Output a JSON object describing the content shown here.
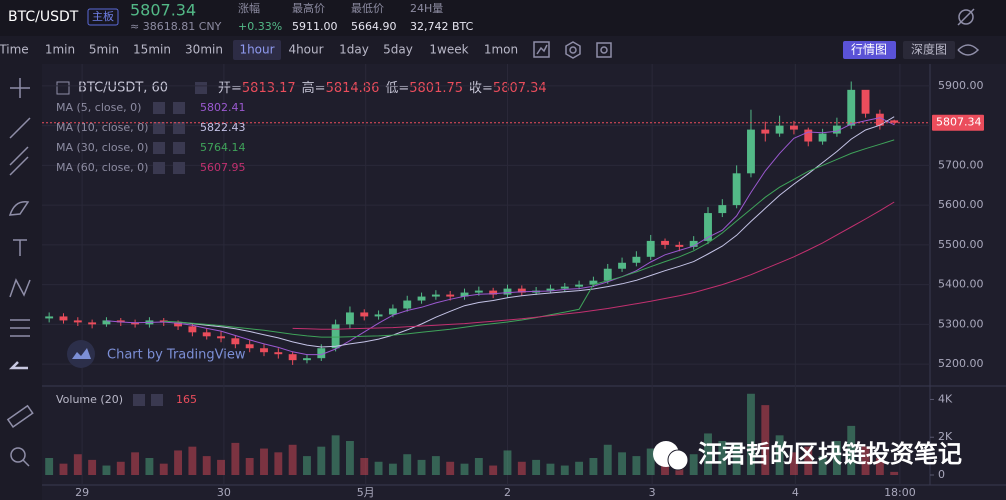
{
  "header": {
    "symbol": "BTC/USDT",
    "badge": "主板",
    "cny": "≈ 38618.81 CNY",
    "stats": [
      {
        "label": "涨幅",
        "value": "+0.33%"
      },
      {
        "label": "最高价",
        "value": "5911.00"
      },
      {
        "label": "最低价",
        "value": "5664.90"
      },
      {
        "label": "24H量",
        "value": "32,742 BTC"
      }
    ]
  },
  "toolbar": {
    "intervals": [
      "Time",
      "1min",
      "5min",
      "15min",
      "30min",
      "1hour",
      "4hour",
      "1day",
      "5day",
      "1week",
      "1mon"
    ],
    "tabs": [
      "行情图",
      "深度图"
    ]
  },
  "legend": {
    "symbol": "BTC/USDT, 60",
    "open": "开=",
    "high": "高=",
    "low": "低=",
    "close": "收="
  },
  "watermark": "Chart by TradingView",
  "overlay": "汪君哲的区块链投资笔记",
  "chart_data": {
    "type": "candlestick",
    "up_color": "#53b987",
    "down_color": "#eb4d5c",
    "open": [
      5315,
      5320,
      5310,
      5305,
      5300,
      5310,
      5305,
      5300,
      5310,
      5305,
      5295,
      5280,
      5270,
      5265,
      5250,
      5240,
      5230,
      5225,
      5210,
      5215,
      5240,
      5300,
      5330,
      5320,
      5325,
      5340,
      5360,
      5370,
      5375,
      5370,
      5380,
      5385,
      5375,
      5390,
      5380,
      5385,
      5390,
      5395,
      5400,
      5410,
      5440,
      5455,
      5470,
      5510,
      5500,
      5495,
      5510,
      5580,
      5600,
      5680,
      5790,
      5780,
      5800,
      5790,
      5760,
      5780,
      5800,
      5890,
      5830,
      5813.17
    ],
    "high": [
      5330,
      5328,
      5318,
      5312,
      5318,
      5316,
      5312,
      5318,
      5316,
      5310,
      5302,
      5290,
      5282,
      5272,
      5260,
      5250,
      5240,
      5232,
      5225,
      5250,
      5312,
      5345,
      5338,
      5335,
      5350,
      5372,
      5380,
      5386,
      5384,
      5390,
      5395,
      5392,
      5400,
      5398,
      5394,
      5400,
      5404,
      5410,
      5420,
      5452,
      5468,
      5484,
      5525,
      5516,
      5508,
      5522,
      5595,
      5615,
      5700,
      5840,
      5810,
      5825,
      5812,
      5795,
      5792,
      5820,
      5911,
      5885,
      5840,
      5814.86
    ],
    "low": [
      5305,
      5302,
      5296,
      5290,
      5294,
      5296,
      5292,
      5292,
      5296,
      5286,
      5270,
      5262,
      5255,
      5240,
      5230,
      5220,
      5214,
      5198,
      5202,
      5208,
      5232,
      5290,
      5310,
      5312,
      5318,
      5332,
      5352,
      5362,
      5360,
      5362,
      5372,
      5366,
      5368,
      5372,
      5374,
      5378,
      5382,
      5388,
      5394,
      5402,
      5432,
      5446,
      5462,
      5490,
      5484,
      5488,
      5502,
      5570,
      5592,
      5670,
      5760,
      5772,
      5778,
      5748,
      5752,
      5772,
      5792,
      5820,
      5790,
      5801.75
    ],
    "close": [
      5320,
      5310,
      5305,
      5300,
      5310,
      5305,
      5300,
      5310,
      5305,
      5295,
      5280,
      5270,
      5265,
      5250,
      5240,
      5230,
      5225,
      5210,
      5215,
      5240,
      5300,
      5330,
      5320,
      5325,
      5340,
      5360,
      5370,
      5375,
      5370,
      5380,
      5385,
      5375,
      5390,
      5380,
      5385,
      5390,
      5395,
      5400,
      5410,
      5440,
      5455,
      5470,
      5510,
      5500,
      5495,
      5510,
      5580,
      5600,
      5680,
      5790,
      5780,
      5800,
      5790,
      5760,
      5780,
      5800,
      5890,
      5830,
      5800,
      5807.34
    ],
    "series": [
      {
        "name": "MA (5, close, 0)",
        "color": "#9b59d0",
        "values": [
          null,
          null,
          null,
          null,
          5309,
          5306,
          5304,
          5305,
          5306,
          5303,
          5298,
          5290,
          5283,
          5272,
          5261,
          5251,
          5242,
          5231,
          5224,
          5224,
          5238,
          5259,
          5281,
          5303,
          5323,
          5335,
          5343,
          5354,
          5363,
          5371,
          5376,
          5377,
          5380,
          5382,
          5383,
          5384,
          5388,
          5390,
          5396,
          5407,
          5420,
          5435,
          5457,
          5475,
          5486,
          5497,
          5519,
          5537,
          5573,
          5632,
          5686,
          5730,
          5768,
          5784,
          5782,
          5786,
          5804,
          5812,
          5820,
          5802.41
        ]
      },
      {
        "name": "MA (10, close, 0)",
        "color": "#c4c3e6",
        "values": [
          null,
          null,
          null,
          null,
          null,
          null,
          null,
          null,
          null,
          5306,
          5302,
          5298,
          5294,
          5289,
          5282,
          5274,
          5266,
          5256,
          5248,
          5243,
          5245,
          5251,
          5256,
          5263,
          5273,
          5286,
          5301,
          5318,
          5333,
          5347,
          5355,
          5360,
          5367,
          5372,
          5376,
          5379,
          5382,
          5385,
          5389,
          5395,
          5402,
          5411,
          5423,
          5435,
          5446,
          5458,
          5477,
          5497,
          5524,
          5559,
          5592,
          5625,
          5653,
          5679,
          5707,
          5735,
          5766,
          5789,
          5801,
          5822.43
        ]
      },
      {
        "name": "MA (30, close, 0)",
        "color": "#3fa35a",
        "values": [
          null,
          null,
          null,
          null,
          null,
          null,
          null,
          null,
          5308,
          5306,
          5303,
          5300,
          5297,
          5293,
          5289,
          5285,
          5280,
          5275,
          5271,
          5268,
          5268,
          5269,
          5270,
          5271,
          5273,
          5276,
          5280,
          5284,
          5288,
          5293,
          5298,
          5302,
          5306,
          5311,
          5317,
          5324,
          5331,
          5338,
          5400,
          5410,
          5420,
          5432,
          5445,
          5458,
          5470,
          5485,
          5505,
          5530,
          5560,
          5590,
          5620,
          5645,
          5665,
          5685,
          5700,
          5715,
          5730,
          5742,
          5753,
          5764.14
        ]
      },
      {
        "name": "MA (60, close, 0)",
        "color": "#c2306f",
        "values": [
          null,
          null,
          null,
          null,
          null,
          null,
          null,
          null,
          null,
          null,
          null,
          null,
          null,
          null,
          null,
          null,
          null,
          5290,
          5289,
          5288,
          5288,
          5289,
          5290,
          5291,
          5292,
          5294,
          5296,
          5298,
          5300,
          5302,
          5305,
          5308,
          5311,
          5314,
          5318,
          5322,
          5326,
          5330,
          5335,
          5340,
          5346,
          5352,
          5358,
          5365,
          5372,
          5380,
          5390,
          5400,
          5412,
          5425,
          5440,
          5455,
          5470,
          5487,
          5505,
          5525,
          5545,
          5565,
          5586,
          5607.95
        ]
      }
    ],
    "ylim": [
      5145,
      5955
    ],
    "yticks": [
      {
        "value": 5200,
        "label": "5200.00"
      },
      {
        "value": 5300,
        "label": "5300.00"
      },
      {
        "value": 5400,
        "label": "5400.00"
      },
      {
        "value": 5500,
        "label": "5500.00"
      },
      {
        "value": 5600,
        "label": "5600.00"
      },
      {
        "value": 5700,
        "label": "5700.00"
      },
      {
        "value": 5800,
        "label": "5800.00"
      },
      {
        "value": 5900,
        "label": "5900.00"
      }
    ],
    "xlim": [
      -0.5,
      61.5
    ],
    "xticks": [
      {
        "value": 2.3,
        "label": "29"
      },
      {
        "value": 12.2,
        "label": "30"
      },
      {
        "value": 22.1,
        "label": "5月"
      },
      {
        "value": 32,
        "label": "2"
      },
      {
        "value": 42.1,
        "label": "3"
      },
      {
        "value": 52.1,
        "label": "4"
      },
      {
        "value": 59.4,
        "label": "18:00"
      }
    ],
    "volume_name": "Volume (20)",
    "volume": [
      900,
      600,
      1100,
      800,
      500,
      700,
      1200,
      900,
      600,
      1300,
      1500,
      1000,
      800,
      1700,
      900,
      1400,
      1200,
      1600,
      1000,
      1500,
      2100,
      1800,
      900,
      700,
      600,
      1100,
      800,
      1000,
      700,
      600,
      900,
      500,
      1300,
      700,
      800,
      600,
      500,
      700,
      900,
      1600,
      1200,
      1000,
      1400,
      900,
      700,
      1100,
      2200,
      1800,
      1600,
      4300,
      3700,
      2100,
      1200,
      1500,
      1000,
      1800,
      2600,
      1500,
      900,
      165
    ],
    "volume_ylim": [
      0,
      4500
    ],
    "volume_ticks": [
      {
        "value": 0,
        "label": "0"
      },
      {
        "value": 2000,
        "label": "2K"
      },
      {
        "value": 4000,
        "label": "4K"
      }
    ],
    "grid": true
  }
}
